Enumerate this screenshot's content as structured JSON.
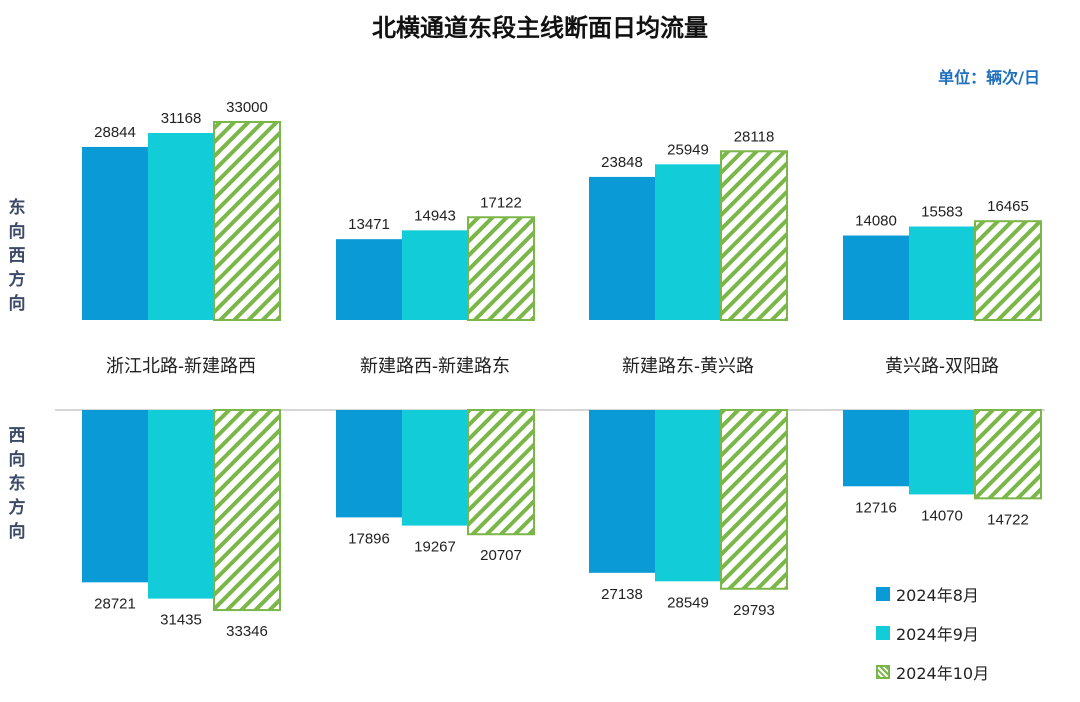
{
  "chart_data": {
    "type": "bar",
    "title": "北横通道东段主线断面日均流量",
    "unit": "单位：辆次/日",
    "categories": [
      "浙江北路-新建路西",
      "新建路西-新建路东",
      "新建路东-黄兴路",
      "黄兴路-双阳路"
    ],
    "directions": {
      "top": "东向西方向",
      "bottom": "西向东方向"
    },
    "series": [
      {
        "name": "2024年8月",
        "color": "#0a9ad6",
        "pattern": "solid",
        "top_values": [
          28844,
          13471,
          23848,
          14080
        ],
        "bottom_values": [
          28721,
          17896,
          27138,
          12716
        ]
      },
      {
        "name": "2024年9月",
        "color": "#12cdd8",
        "pattern": "solid",
        "top_values": [
          31168,
          14943,
          25949,
          15583
        ],
        "bottom_values": [
          31435,
          19267,
          28549,
          14070
        ]
      },
      {
        "name": "2024年10月",
        "color": "#7ab648",
        "pattern": "hatch",
        "top_values": [
          33000,
          17122,
          28118,
          16465
        ],
        "bottom_values": [
          33346,
          20707,
          29793,
          14722
        ]
      }
    ],
    "ylim": [
      0,
      35000
    ]
  }
}
